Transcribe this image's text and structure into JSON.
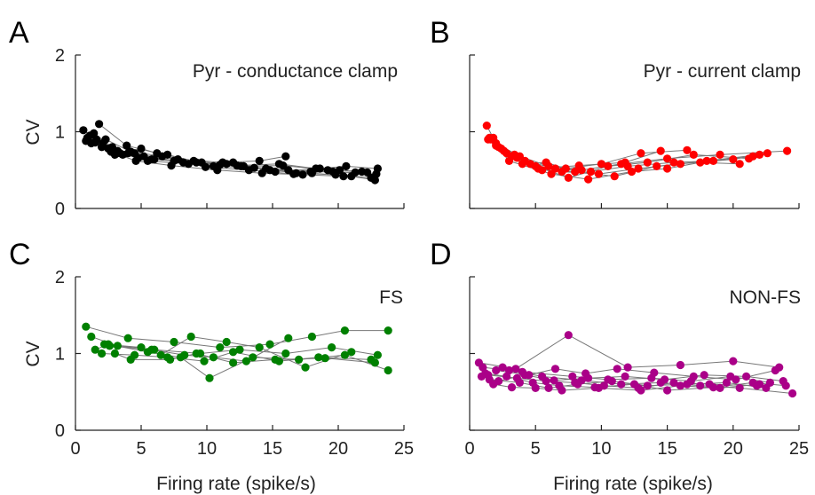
{
  "figure": {
    "xlabel": "Firing rate (spike/s)",
    "ylabel": "CV"
  },
  "chart_data": [
    {
      "panel": "A",
      "type": "scatter",
      "title": "Pyr - conductance clamp",
      "color": "#000000",
      "xlim": [
        0,
        25
      ],
      "ylim": [
        0,
        2
      ],
      "xticks": [
        0,
        5,
        10,
        15,
        20,
        25
      ],
      "yticks": [
        0,
        1,
        2
      ],
      "show_x_tick_labels": false,
      "show_y_tick_labels": true,
      "series": [
        {
          "x": [
            0.6,
            2.5,
            4.5,
            7.5,
            11,
            14.5,
            18,
            21,
            22.8
          ],
          "y": [
            1.02,
            0.78,
            0.72,
            0.62,
            0.57,
            0.52,
            0.46,
            0.42,
            0.37
          ]
        },
        {
          "x": [
            0.9,
            2.1,
            3.6,
            5.8,
            9.2,
            12.6,
            16.2,
            19.6,
            22.9
          ],
          "y": [
            0.92,
            0.85,
            0.7,
            0.64,
            0.6,
            0.55,
            0.5,
            0.48,
            0.45
          ]
        },
        {
          "x": [
            1.2,
            3.2,
            5.2,
            8.2,
            11.5,
            14.8,
            17.9,
            21.3
          ],
          "y": [
            0.85,
            0.75,
            0.68,
            0.6,
            0.58,
            0.5,
            0.48,
            0.47
          ]
        },
        {
          "x": [
            1.4,
            2.8,
            4.8,
            7.0,
            10.5,
            13.6,
            16.8,
            19.8,
            22.5
          ],
          "y": [
            0.98,
            0.8,
            0.66,
            0.7,
            0.55,
            0.53,
            0.46,
            0.44,
            0.4
          ]
        },
        {
          "x": [
            1.6,
            3.4,
            5.5,
            8.6,
            12.0,
            15.2,
            18.6,
            20.6,
            23.0
          ],
          "y": [
            0.9,
            0.72,
            0.62,
            0.58,
            0.6,
            0.48,
            0.52,
            0.55,
            0.52
          ]
        },
        {
          "x": [
            1.8,
            3.9,
            6.2,
            9.6,
            12.8,
            15.8,
            19.2
          ],
          "y": [
            1.1,
            0.82,
            0.72,
            0.6,
            0.55,
            0.56,
            0.5
          ]
        },
        {
          "x": [
            0.8,
            2.3,
            4.2,
            6.6,
            9.9,
            13.2,
            16.6,
            20.1,
            22.2
          ],
          "y": [
            0.88,
            0.9,
            0.74,
            0.68,
            0.54,
            0.5,
            0.45,
            0.5,
            0.47
          ]
        },
        {
          "x": [
            1.1,
            2.7,
            4.6,
            7.3,
            10.8,
            14.2,
            17.3,
            20.4
          ],
          "y": [
            0.95,
            0.74,
            0.62,
            0.56,
            0.5,
            0.46,
            0.44,
            0.42
          ]
        },
        {
          "x": [
            2.0,
            4.0,
            6.0,
            9.0,
            12.3,
            15.5,
            18.3,
            21.8
          ],
          "y": [
            0.8,
            0.72,
            0.64,
            0.62,
            0.56,
            0.58,
            0.52,
            0.48
          ]
        },
        {
          "x": [
            1.5,
            3.0,
            5.0,
            7.8,
            11.2,
            14.0,
            16.0
          ],
          "y": [
            0.86,
            0.7,
            0.78,
            0.64,
            0.6,
            0.62,
            0.68
          ]
        }
      ]
    },
    {
      "panel": "B",
      "type": "scatter",
      "title": "Pyr - current clamp",
      "color": "#ff0000",
      "xlim": [
        0,
        25
      ],
      "ylim": [
        0,
        2
      ],
      "xticks": [
        0,
        5,
        10,
        15,
        20,
        25
      ],
      "yticks": [
        0,
        1,
        2
      ],
      "show_x_tick_labels": false,
      "show_y_tick_labels": false,
      "series": [
        {
          "x": [
            1.3,
            2.0,
            3.8,
            6.0,
            8.5,
            11.5,
            15.0,
            19.0,
            24.1
          ],
          "y": [
            1.08,
            0.85,
            0.68,
            0.55,
            0.5,
            0.58,
            0.65,
            0.7,
            0.75
          ]
        },
        {
          "x": [
            1.5,
            2.4,
            4.2,
            6.5,
            9.2,
            12.0,
            15.5,
            18.5,
            21.5
          ],
          "y": [
            0.92,
            0.78,
            0.62,
            0.52,
            0.48,
            0.55,
            0.6,
            0.62,
            0.68
          ]
        },
        {
          "x": [
            1.8,
            2.8,
            4.6,
            7.0,
            9.8,
            12.8,
            16.0,
            20.0,
            22.6
          ],
          "y": [
            0.92,
            0.72,
            0.58,
            0.48,
            0.45,
            0.52,
            0.58,
            0.64,
            0.72
          ]
        },
        {
          "x": [
            2.2,
            3.2,
            5.0,
            7.5,
            10.5,
            13.5,
            17.0,
            21.2
          ],
          "y": [
            0.8,
            0.68,
            0.55,
            0.4,
            0.55,
            0.6,
            0.7,
            0.65
          ]
        },
        {
          "x": [
            2.6,
            3.6,
            5.5,
            8.0,
            11.0,
            14.2,
            18.0,
            22.0
          ],
          "y": [
            0.75,
            0.66,
            0.5,
            0.48,
            0.42,
            0.55,
            0.62,
            0.7
          ]
        },
        {
          "x": [
            1.6,
            3.0,
            6.2,
            9.0,
            12.3,
            15.0,
            17.5,
            20.5
          ],
          "y": [
            0.9,
            0.62,
            0.45,
            0.38,
            0.48,
            0.52,
            0.6,
            0.58
          ]
        },
        {
          "x": [
            2.0,
            4.0,
            5.8,
            7.3,
            10.0,
            13.0,
            16.5
          ],
          "y": [
            0.82,
            0.58,
            0.6,
            0.52,
            0.58,
            0.72,
            0.76
          ]
        },
        {
          "x": [
            1.4,
            3.4,
            5.2,
            8.3,
            11.8,
            14.5
          ],
          "y": [
            0.9,
            0.7,
            0.52,
            0.56,
            0.6,
            0.75
          ]
        }
      ]
    },
    {
      "panel": "C",
      "type": "scatter",
      "title": "FS",
      "color": "#008000",
      "xlim": [
        0,
        25
      ],
      "ylim": [
        0,
        2
      ],
      "xticks": [
        0,
        5,
        10,
        15,
        20,
        25
      ],
      "yticks": [
        0,
        1,
        2
      ],
      "show_x_tick_labels": true,
      "show_y_tick_labels": true,
      "series": [
        {
          "x": [
            0.8,
            4.0,
            7.5,
            11.0,
            14.8,
            18.0,
            20.5,
            23.8
          ],
          "y": [
            1.35,
            1.2,
            1.15,
            1.08,
            1.12,
            1.22,
            1.3,
            1.3
          ]
        },
        {
          "x": [
            1.2,
            3.2,
            6.0,
            9.5,
            12.5,
            16.0,
            19.5,
            23.0
          ],
          "y": [
            1.22,
            1.1,
            1.05,
            1.0,
            1.05,
            1.0,
            1.08,
            0.98
          ]
        },
        {
          "x": [
            1.5,
            2.5,
            5.5,
            8.0,
            10.2,
            13.5,
            17.0,
            20.5,
            23.8
          ],
          "y": [
            1.05,
            1.12,
            1.02,
            0.95,
            0.68,
            0.95,
            0.92,
            0.98,
            0.78
          ]
        },
        {
          "x": [
            2.0,
            4.5,
            7.0,
            9.8,
            12.0,
            15.5,
            18.5,
            22.5
          ],
          "y": [
            1.0,
            0.98,
            0.95,
            0.9,
            1.02,
            0.9,
            0.95,
            0.92
          ]
        },
        {
          "x": [
            2.2,
            5.0,
            6.5,
            8.8,
            11.5,
            14.0,
            17.5,
            21.0
          ],
          "y": [
            1.12,
            1.08,
            0.98,
            1.22,
            1.15,
            1.08,
            0.82,
            1.02
          ]
        },
        {
          "x": [
            3.0,
            4.2,
            7.2,
            9.2,
            12.0,
            15.2,
            19.0,
            22.8
          ],
          "y": [
            1.0,
            0.92,
            0.92,
            1.0,
            0.88,
            0.92,
            0.94,
            0.88
          ]
        },
        {
          "x": [
            2.6,
            5.8,
            8.3,
            10.5,
            13.0,
            16.2
          ],
          "y": [
            1.1,
            1.05,
            0.98,
            0.95,
            0.9,
            1.2
          ]
        }
      ]
    },
    {
      "panel": "D",
      "type": "scatter",
      "title": "NON-FS",
      "color": "#aa0088",
      "xlim": [
        0,
        25
      ],
      "ylim": [
        0,
        2
      ],
      "xticks": [
        0,
        5,
        10,
        15,
        20,
        25
      ],
      "yticks": [
        0,
        1,
        2
      ],
      "show_x_tick_labels": true,
      "show_y_tick_labels": false,
      "series": [
        {
          "x": [
            0.7,
            3.5,
            7.5,
            12.0,
            16.0,
            20.0,
            23.5
          ],
          "y": [
            0.88,
            0.8,
            1.24,
            0.82,
            0.85,
            0.9,
            0.82
          ]
        },
        {
          "x": [
            1.0,
            3.0,
            5.5,
            8.5,
            11.5,
            14.5,
            17.5,
            20.5,
            24.5
          ],
          "y": [
            0.82,
            0.78,
            0.7,
            0.65,
            0.6,
            0.62,
            0.58,
            0.55,
            0.48
          ]
        },
        {
          "x": [
            1.2,
            2.8,
            4.8,
            6.8,
            9.5,
            12.5,
            15.0,
            18.5,
            21.5,
            24.0
          ],
          "y": [
            0.74,
            0.7,
            0.62,
            0.58,
            0.56,
            0.6,
            0.52,
            0.56,
            0.62,
            0.58
          ]
        },
        {
          "x": [
            1.5,
            3.8,
            6.0,
            8.2,
            10.8,
            13.5,
            16.5,
            19.5,
            22.5
          ],
          "y": [
            0.66,
            0.62,
            0.55,
            0.6,
            0.64,
            0.58,
            0.6,
            0.62,
            0.55
          ]
        },
        {
          "x": [
            0.9,
            2.2,
            4.2,
            6.4,
            9.0,
            11.8,
            14.8,
            17.8,
            21.0,
            23.8
          ],
          "y": [
            0.7,
            0.64,
            0.72,
            0.65,
            0.68,
            0.7,
            0.66,
            0.72,
            0.7,
            0.64
          ]
        },
        {
          "x": [
            1.8,
            3.2,
            5.0,
            7.0,
            9.8,
            13.0,
            16.0,
            19.0,
            22.0
          ],
          "y": [
            0.6,
            0.56,
            0.55,
            0.52,
            0.55,
            0.52,
            0.58,
            0.55,
            0.6
          ]
        },
        {
          "x": [
            2.0,
            4.5,
            6.5,
            8.8,
            11.2,
            14.0,
            17.0,
            20.2,
            23.2
          ],
          "y": [
            0.78,
            0.72,
            0.8,
            0.74,
            0.8,
            0.75,
            0.7,
            0.66,
            0.78
          ]
        },
        {
          "x": [
            1.4,
            3.6,
            5.8,
            8.0,
            10.2,
            12.8,
            15.5,
            18.2,
            21.8
          ],
          "y": [
            0.72,
            0.68,
            0.64,
            0.62,
            0.58,
            0.55,
            0.62,
            0.6,
            0.58
          ]
        },
        {
          "x": [
            2.5,
            4.0,
            7.8,
            10.5,
            13.8,
            16.8,
            19.8,
            22.8
          ],
          "y": [
            0.82,
            0.76,
            0.7,
            0.66,
            0.68,
            0.64,
            0.7,
            0.62
          ]
        }
      ]
    }
  ]
}
